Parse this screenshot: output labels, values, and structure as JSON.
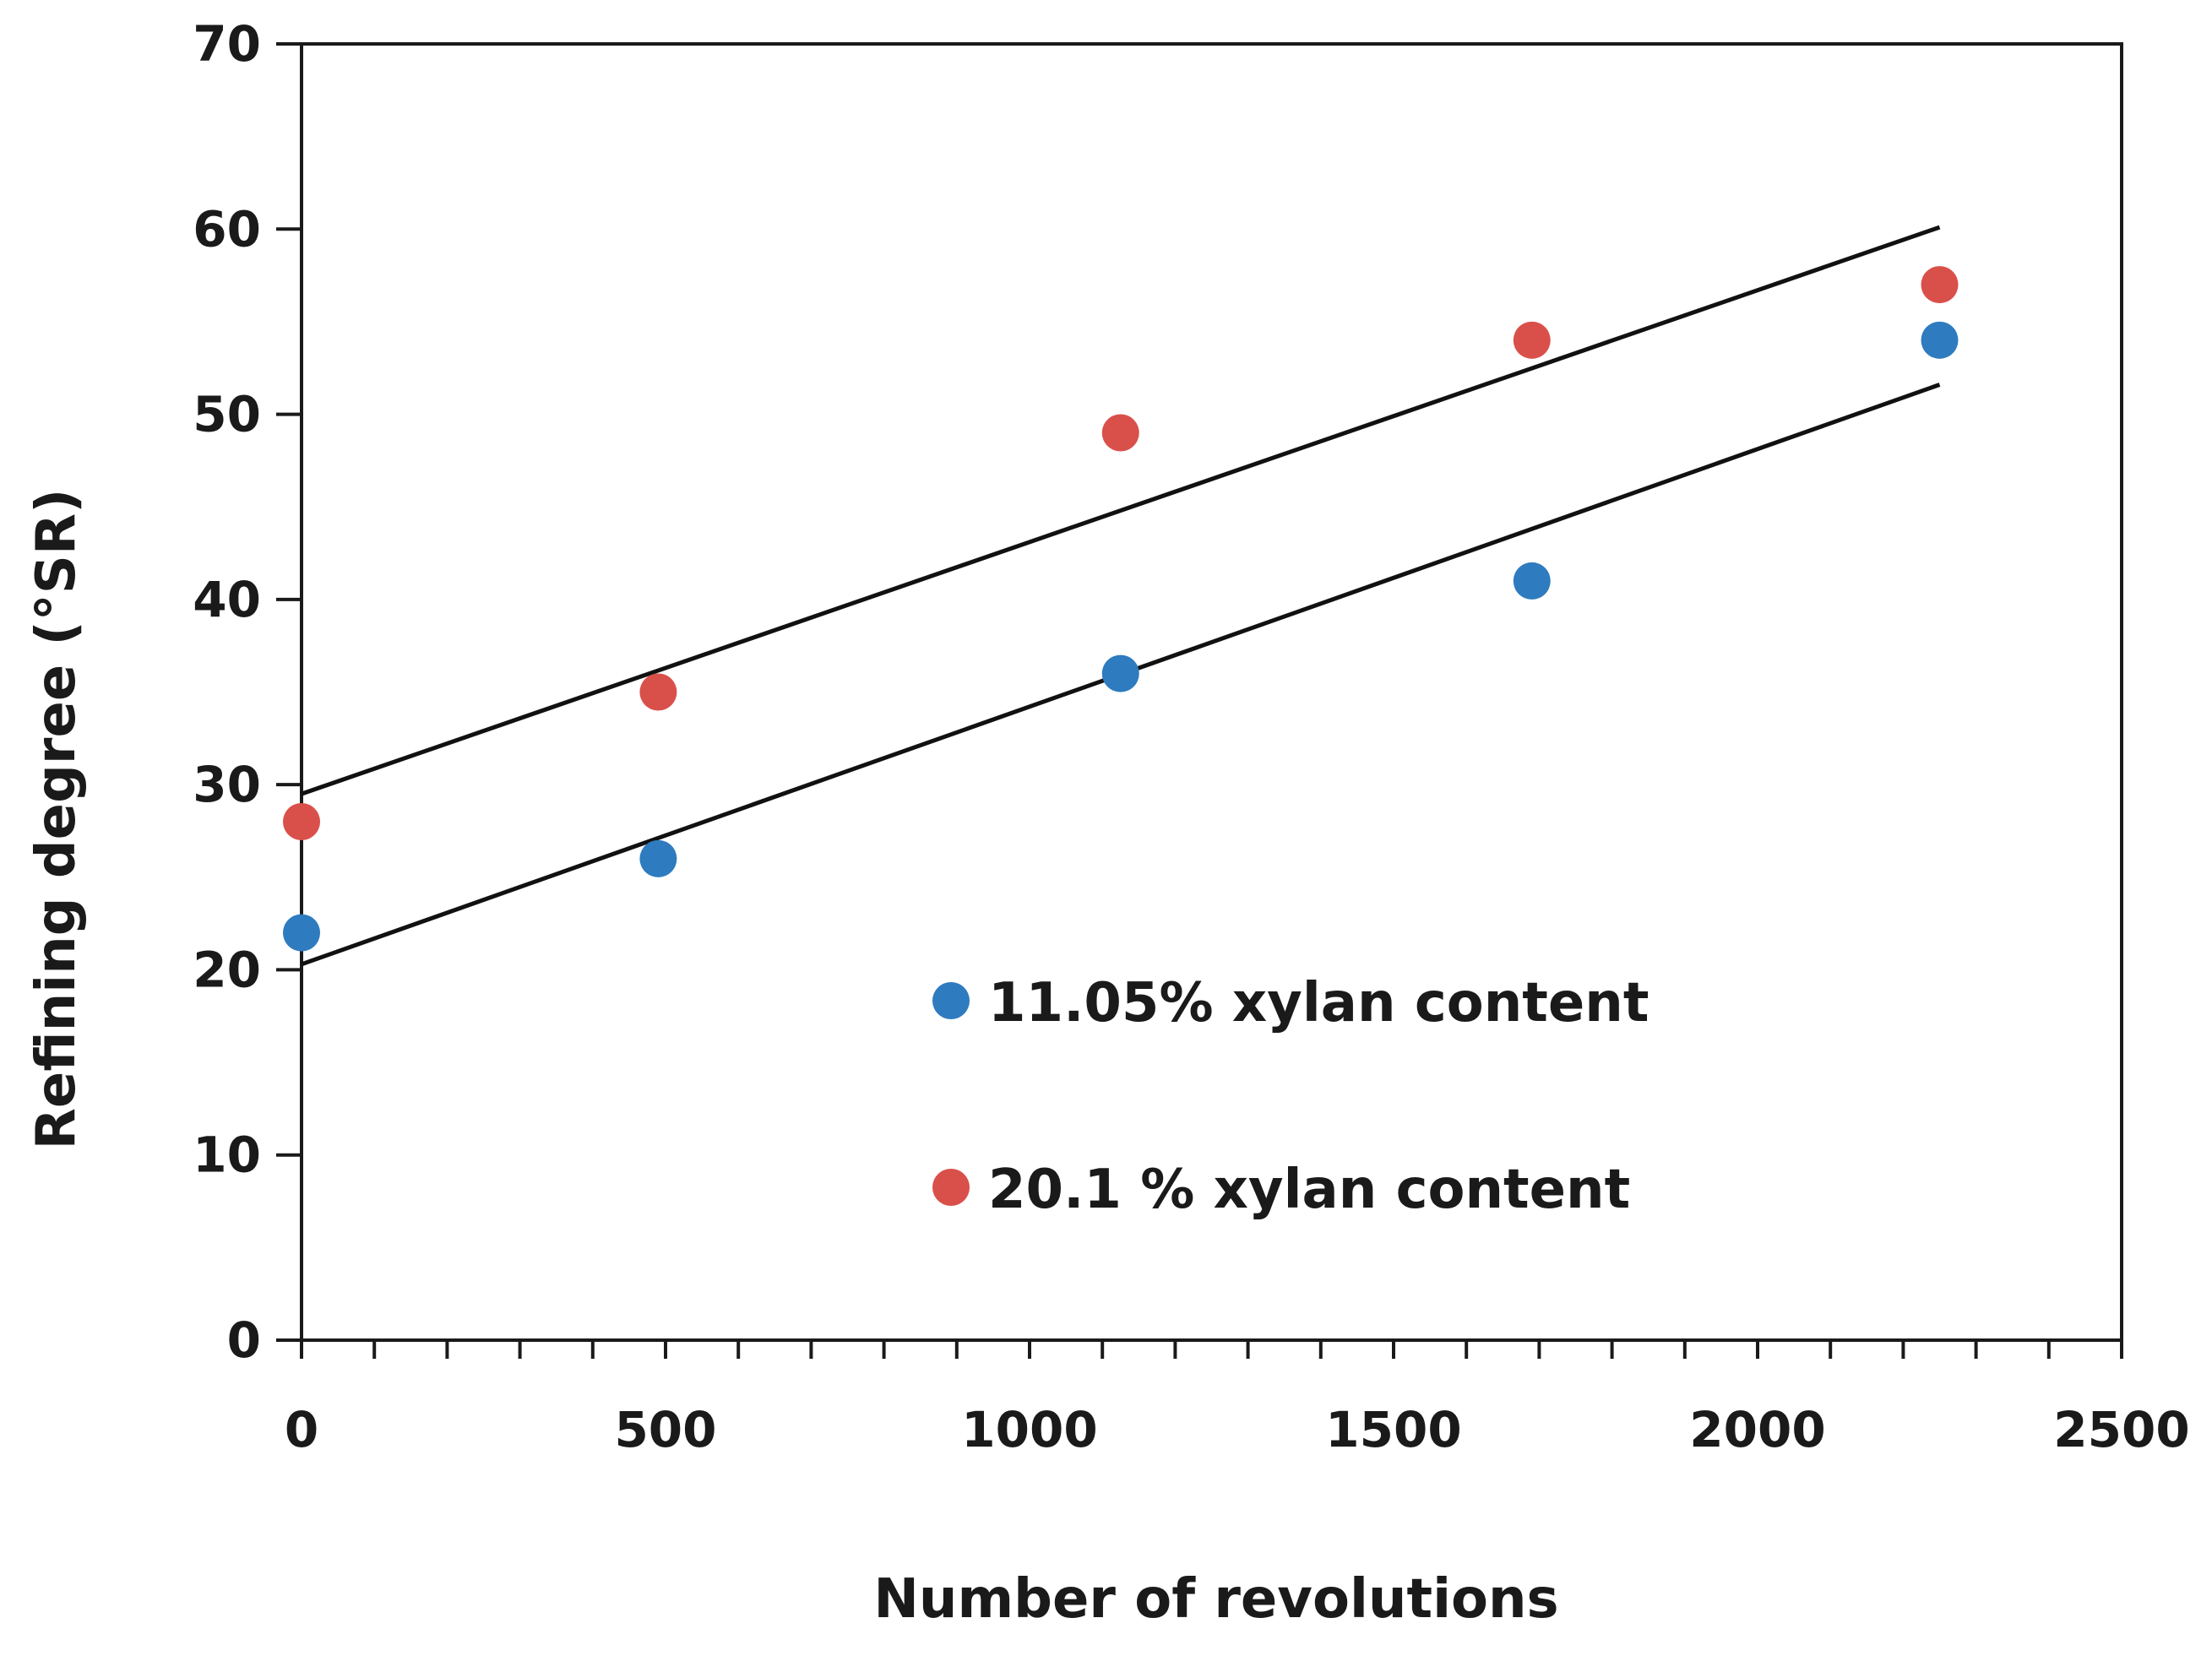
{
  "chart_data": {
    "type": "scatter",
    "title": "",
    "xlabel": "Number of revolutions",
    "ylabel": "Refining degree (°SR)",
    "xlim": [
      0,
      2500
    ],
    "ylim": [
      0,
      70
    ],
    "x_ticks": [
      0,
      500,
      1000,
      1500,
      2000,
      2500
    ],
    "y_ticks": [
      0,
      10,
      20,
      30,
      40,
      50,
      60,
      70
    ],
    "x_minor_step": 100,
    "grid": false,
    "legend_position": "center",
    "series": [
      {
        "name": "11.05% xylan content",
        "color": "#2e7bbf",
        "x": [
          0,
          490,
          1125,
          1690,
          2250
        ],
        "y": [
          22,
          26,
          36,
          41,
          54
        ],
        "trendline": {
          "x": [
            0,
            2250
          ],
          "y": [
            20.3,
            51.6
          ]
        }
      },
      {
        "name": "20.1 % xylan content",
        "color": "#d9504a",
        "x": [
          0,
          490,
          1125,
          1690,
          2250
        ],
        "y": [
          28,
          35,
          49,
          54,
          57
        ],
        "trendline": {
          "x": [
            0,
            2250
          ],
          "y": [
            29.5,
            60.1
          ]
        }
      }
    ]
  }
}
